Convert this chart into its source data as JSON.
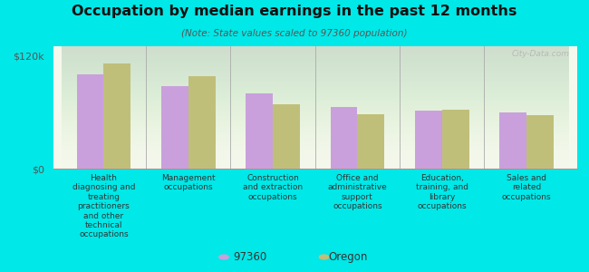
{
  "title": "Occupation by median earnings in the past 12 months",
  "subtitle": "(Note: State values scaled to 97360 population)",
  "background_color": "#00e8e8",
  "plot_bg_top": "#e8f0d0",
  "plot_bg_bottom": "#f5f8ec",
  "categories": [
    "Health\ndiagnosing and\ntreating\npractitioners\nand other\ntechnical\noccupations",
    "Management\noccupations",
    "Construction\nand extraction\noccupations",
    "Office and\nadministrative\nsupport\noccupations",
    "Education,\ntraining, and\nlibrary\noccupations",
    "Sales and\nrelated\noccupations"
  ],
  "values_97360": [
    100000,
    88000,
    80000,
    65000,
    62000,
    60000
  ],
  "values_oregon": [
    112000,
    98000,
    68000,
    58000,
    63000,
    57000
  ],
  "color_97360": "#c9a0dc",
  "color_oregon": "#c0bf7a",
  "ylim": [
    0,
    130000
  ],
  "yticks": [
    0,
    120000
  ],
  "ytick_labels": [
    "$0",
    "$120k"
  ],
  "legend_97360": "97360",
  "legend_oregon": "Oregon",
  "watermark": "City-Data.com"
}
